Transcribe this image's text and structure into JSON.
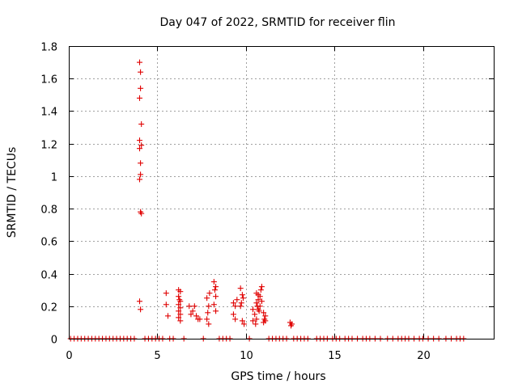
{
  "chart_data": {
    "type": "scatter",
    "title": "Day 047 of 2022, SRMTID for receiver flin",
    "xlabel": "GPS time / hours",
    "ylabel": "SRMTID / TECUs",
    "xlim": [
      0,
      24
    ],
    "ylim": [
      0,
      1.8
    ],
    "xticks": [
      0,
      5,
      10,
      15,
      20
    ],
    "xtick_labels": [
      "0",
      "5",
      "10",
      "15",
      "20"
    ],
    "yticks": [
      0,
      0.2,
      0.4,
      0.6,
      0.8,
      1.0,
      1.2,
      1.4,
      1.6,
      1.8
    ],
    "ytick_labels": [
      "0",
      "0.2",
      "0.4",
      "0.6",
      "0.8",
      "1",
      "1.2",
      "1.4",
      "1.6",
      "1.8"
    ],
    "grid": true,
    "marker": "+",
    "color": "#e00000",
    "series": [
      {
        "name": "SRMTID",
        "points": [
          [
            4.0,
            1.7
          ],
          [
            4.05,
            1.64
          ],
          [
            4.05,
            1.54
          ],
          [
            4.0,
            1.48
          ],
          [
            4.1,
            1.32
          ],
          [
            4.0,
            1.22
          ],
          [
            4.0,
            1.17
          ],
          [
            4.1,
            1.19
          ],
          [
            4.05,
            1.08
          ],
          [
            4.05,
            1.01
          ],
          [
            4.0,
            0.98
          ],
          [
            4.05,
            0.78
          ],
          [
            4.1,
            0.77
          ],
          [
            4.0,
            0.23
          ],
          [
            4.05,
            0.18
          ],
          [
            5.5,
            0.28
          ],
          [
            5.5,
            0.21
          ],
          [
            5.6,
            0.14
          ],
          [
            6.2,
            0.3
          ],
          [
            6.3,
            0.29
          ],
          [
            6.2,
            0.26
          ],
          [
            6.3,
            0.23
          ],
          [
            6.2,
            0.21
          ],
          [
            6.3,
            0.19
          ],
          [
            6.2,
            0.17
          ],
          [
            6.3,
            0.15
          ],
          [
            6.2,
            0.13
          ],
          [
            6.3,
            0.11
          ],
          [
            6.25,
            0.24
          ],
          [
            6.8,
            0.2
          ],
          [
            6.9,
            0.15
          ],
          [
            7.0,
            0.17
          ],
          [
            7.1,
            0.2
          ],
          [
            7.2,
            0.14
          ],
          [
            7.3,
            0.12
          ],
          [
            7.4,
            0.12
          ],
          [
            7.8,
            0.25
          ],
          [
            7.9,
            0.2
          ],
          [
            7.85,
            0.16
          ],
          [
            7.8,
            0.12
          ],
          [
            7.9,
            0.09
          ],
          [
            7.95,
            0.28
          ],
          [
            8.2,
            0.35
          ],
          [
            8.3,
            0.32
          ],
          [
            8.25,
            0.3
          ],
          [
            8.3,
            0.26
          ],
          [
            8.2,
            0.21
          ],
          [
            8.3,
            0.17
          ],
          [
            9.3,
            0.22
          ],
          [
            9.4,
            0.2
          ],
          [
            9.3,
            0.15
          ],
          [
            9.4,
            0.12
          ],
          [
            9.5,
            0.24
          ],
          [
            9.7,
            0.31
          ],
          [
            9.8,
            0.27
          ],
          [
            9.75,
            0.22
          ],
          [
            9.7,
            0.2
          ],
          [
            9.8,
            0.11
          ],
          [
            9.9,
            0.09
          ],
          [
            9.85,
            0.25
          ],
          [
            10.4,
            0.18
          ],
          [
            10.5,
            0.15
          ],
          [
            10.6,
            0.12
          ],
          [
            10.4,
            0.11
          ],
          [
            10.55,
            0.09
          ],
          [
            10.6,
            0.28
          ],
          [
            10.7,
            0.27
          ],
          [
            10.8,
            0.26
          ],
          [
            10.7,
            0.24
          ],
          [
            10.6,
            0.22
          ],
          [
            10.8,
            0.2
          ],
          [
            10.7,
            0.18
          ],
          [
            10.9,
            0.32
          ],
          [
            10.85,
            0.3
          ],
          [
            10.75,
            0.17
          ],
          [
            10.9,
            0.23
          ],
          [
            10.65,
            0.2
          ],
          [
            11.0,
            0.16
          ],
          [
            11.1,
            0.14
          ],
          [
            11.05,
            0.12
          ],
          [
            11.0,
            0.1
          ],
          [
            11.1,
            0.11
          ],
          [
            12.5,
            0.1
          ],
          [
            12.55,
            0.08
          ],
          [
            12.6,
            0.09
          ]
        ]
      }
    ],
    "zero_times": [
      0.1,
      0.3,
      0.5,
      0.7,
      0.9,
      1.1,
      1.3,
      1.5,
      1.7,
      1.9,
      2.1,
      2.3,
      2.5,
      2.7,
      2.9,
      3.1,
      3.3,
      3.5,
      3.7,
      4.3,
      4.5,
      4.7,
      4.9,
      5.1,
      5.3,
      5.7,
      5.9,
      6.5,
      7.6,
      8.5,
      8.7,
      8.9,
      9.1,
      10.2,
      11.3,
      11.5,
      11.7,
      11.9,
      12.1,
      12.3,
      12.7,
      12.9,
      13.1,
      13.3,
      13.5,
      14.0,
      14.2,
      14.4,
      14.6,
      14.9,
      15.1,
      15.3,
      15.6,
      15.8,
      16.0,
      16.3,
      16.6,
      16.8,
      17.0,
      17.3,
      17.6,
      18.0,
      18.3,
      18.6,
      18.8,
      19.0,
      19.2,
      19.5,
      19.8,
      20.0,
      20.3,
      20.6,
      20.9,
      21.3,
      21.6,
      21.9,
      22.1,
      22.3
    ]
  }
}
